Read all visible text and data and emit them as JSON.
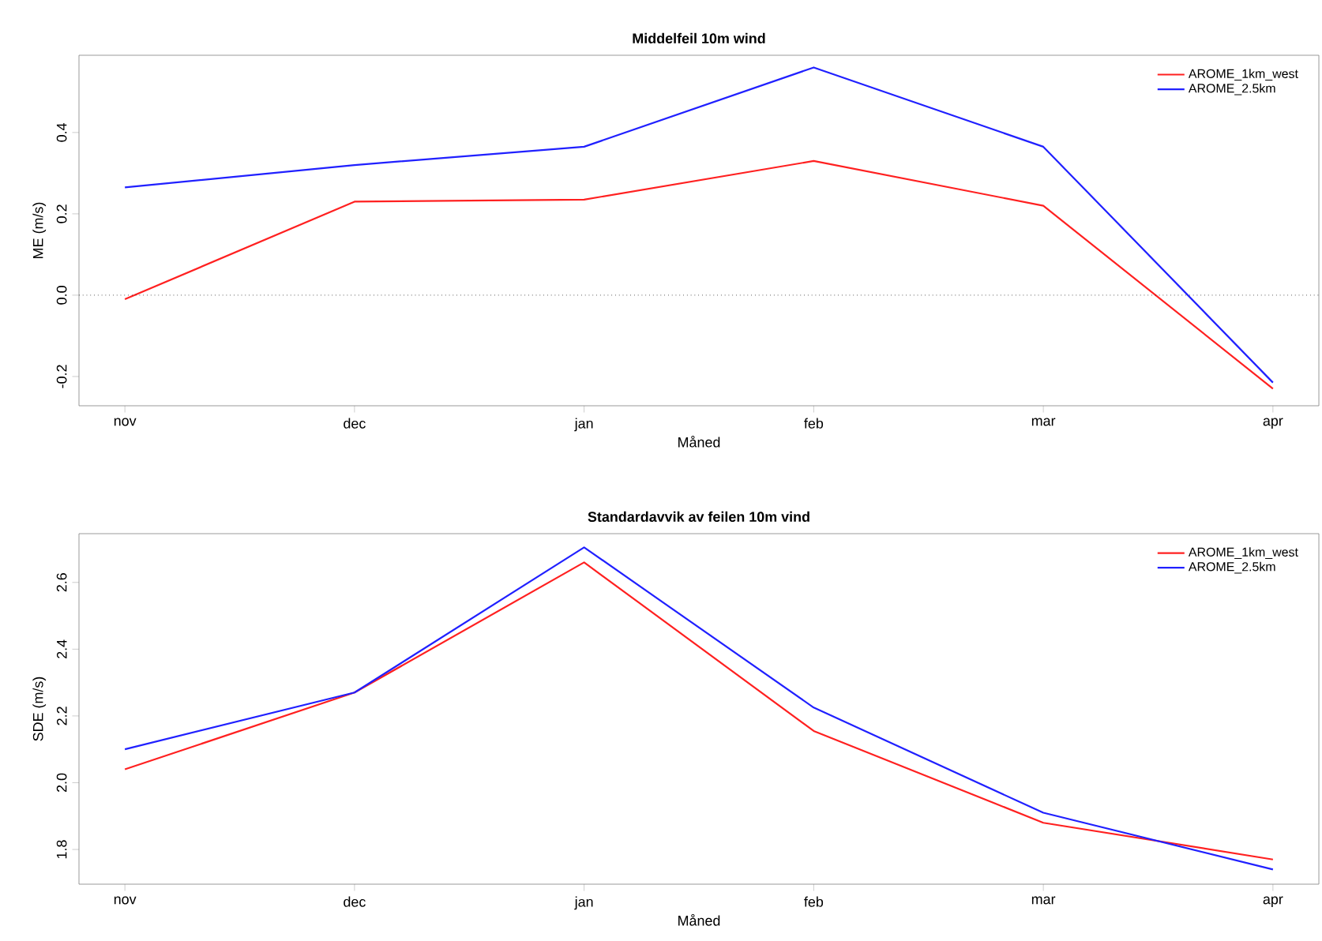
{
  "chart_data": [
    {
      "type": "line",
      "title": "Middelfeil 10m wind",
      "xlabel": "Måned",
      "ylabel": "ME (m/s)",
      "categories": [
        "nov",
        "dec",
        "jan",
        "feb",
        "mar",
        "apr"
      ],
      "series": [
        {
          "name": "AROME_1km_west",
          "color": "#ff2020",
          "values": [
            -0.01,
            0.23,
            0.235,
            0.33,
            0.22,
            -0.23
          ]
        },
        {
          "name": "AROME_2.5km",
          "color": "#2020ff",
          "values": [
            0.265,
            0.32,
            0.365,
            0.56,
            0.365,
            -0.215
          ]
        }
      ],
      "ylim": [
        -0.272,
        0.59
      ],
      "yticks": [
        {
          "value": -0.2,
          "label": "-0.2"
        },
        {
          "value": 0,
          "label": "0.0"
        },
        {
          "value": 0.2,
          "label": "0.2"
        },
        {
          "value": 0.4,
          "label": "0.4"
        }
      ],
      "ref_lines": [
        {
          "axis": "y",
          "value": 0,
          "color": "#000000",
          "line_style": "dotted"
        }
      ],
      "legend": "top right",
      "grid": false
    },
    {
      "type": "line",
      "title": "Standardavvik av feilen 10m vind",
      "xlabel": "Måned",
      "ylabel": "SDE (m/s)",
      "categories": [
        "nov",
        "dec",
        "jan",
        "feb",
        "mar",
        "apr"
      ],
      "series": [
        {
          "name": "AROME_1km_west",
          "color": "#ff2020",
          "values": [
            2.04,
            2.27,
            2.66,
            2.155,
            1.88,
            1.77
          ]
        },
        {
          "name": "AROME_2.5km",
          "color": "#2020ff",
          "values": [
            2.1,
            2.27,
            2.705,
            2.225,
            1.91,
            1.74
          ]
        }
      ],
      "ylim": [
        1.696,
        2.746
      ],
      "yticks": [
        {
          "value": 1.8,
          "label": "1.8"
        },
        {
          "value": 2.0,
          "label": "2.0"
        },
        {
          "value": 2.2,
          "label": "2.2"
        },
        {
          "value": 2.4,
          "label": "2.4"
        },
        {
          "value": 2.6,
          "label": "2.6"
        }
      ],
      "legend": "top right",
      "grid": false
    }
  ]
}
